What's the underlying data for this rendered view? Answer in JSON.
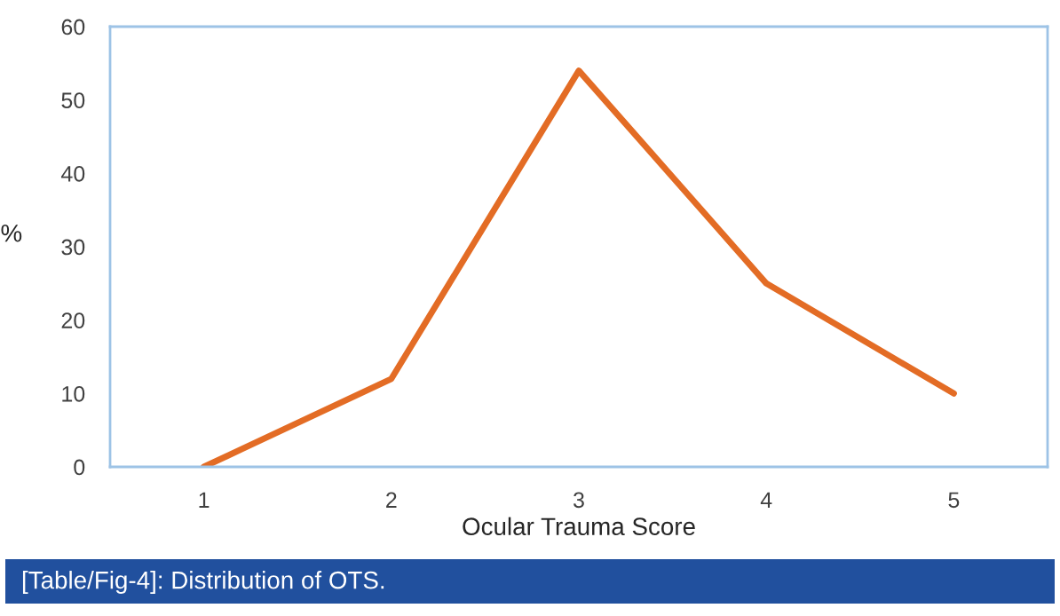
{
  "chart_data": {
    "type": "line",
    "xlabel": "Ocular Trauma Score",
    "ylabel": "%",
    "categories": [
      "1",
      "2",
      "3",
      "4",
      "5"
    ],
    "series": [
      {
        "color": "#e36c25",
        "values": [
          0,
          12,
          54,
          25,
          10
        ]
      }
    ],
    "ylim": [
      0,
      60
    ],
    "yticks": [
      0,
      10,
      20,
      30,
      40,
      50,
      60
    ],
    "grid": false,
    "legend": false,
    "marker": "none",
    "line_style": "solid",
    "annotations": [
      "[Table/Fig-4]: Distribution of OTS."
    ]
  }
}
